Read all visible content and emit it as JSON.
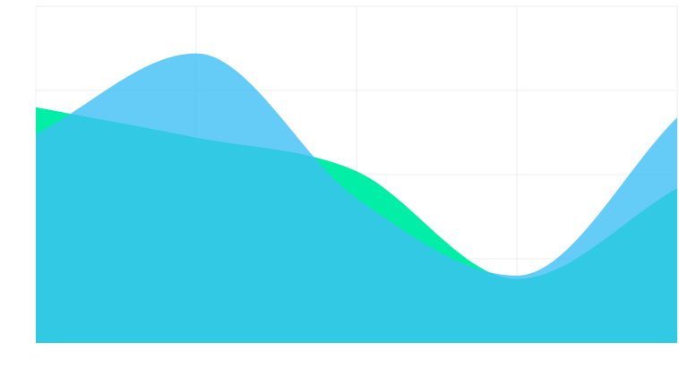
{
  "chart_data": {
    "type": "area",
    "title": "",
    "xlabel": "",
    "ylabel": "",
    "x": [
      0,
      1,
      2,
      3,
      4
    ],
    "ylim": [
      0,
      100
    ],
    "grid": true,
    "legend": "none",
    "series": [
      {
        "color": "#00EEA5",
        "opacity": 1.0,
        "values": [
          70,
          61,
          51,
          19,
          46
        ]
      },
      {
        "color": "#3EBFF5",
        "opacity": 0.8,
        "values": [
          62,
          86,
          43,
          20,
          67
        ]
      }
    ]
  }
}
